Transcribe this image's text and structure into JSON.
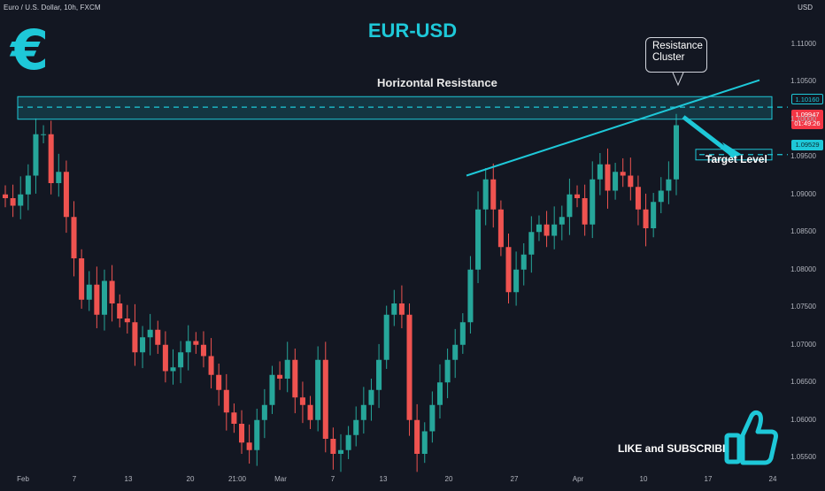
{
  "header": {
    "symbol": "Euro / U.S. Dollar, 10h, FXCM",
    "currency": "USD"
  },
  "icons": {
    "logo": "euro-sign-icon",
    "like": "thumbs-up-icon"
  },
  "colors": {
    "background": "#131722",
    "accent": "#1ec8d8",
    "up_candle": "#26a69a",
    "down_candle": "#ef5350",
    "last_price_tag": "#f23645"
  },
  "chart_data": {
    "type": "candlestick",
    "title": "EUR-USD",
    "y_axis": {
      "position": "right",
      "unit": "USD",
      "ticks": [
        "1.11000",
        "1.10500",
        "1.10000",
        "1.09500",
        "1.09000",
        "1.08500",
        "1.08000",
        "1.07500",
        "1.07000",
        "1.06500",
        "1.06000",
        "1.05500"
      ],
      "range": [
        1.0535,
        1.1135
      ]
    },
    "x_axis": {
      "ticks": [
        "Feb",
        "7",
        "13",
        "20",
        "21:00",
        "Mar",
        "7",
        "13",
        "20",
        "27",
        "Apr",
        "10",
        "17",
        "24"
      ]
    },
    "series_close_approx": [
      1.0895,
      1.0885,
      1.09,
      1.0925,
      1.098,
      1.098,
      1.0915,
      1.093,
      1.087,
      1.0815,
      1.076,
      1.078,
      1.074,
      1.0785,
      1.0755,
      1.0735,
      1.073,
      1.069,
      1.071,
      1.072,
      1.07,
      1.0665,
      1.067,
      1.069,
      1.0705,
      1.07,
      1.0685,
      1.066,
      1.064,
      1.061,
      1.0595,
      1.057,
      1.056,
      1.06,
      1.062,
      1.066,
      1.0655,
      1.068,
      1.063,
      1.062,
      1.06,
      1.068,
      1.0575,
      1.0555,
      1.056,
      1.058,
      1.06,
      1.062,
      1.064,
      1.068,
      1.074,
      1.0755,
      1.074,
      1.06,
      1.0555,
      1.0585,
      1.062,
      1.065,
      1.068,
      1.07,
      1.073,
      1.08,
      1.088,
      1.092,
      1.088,
      1.083,
      1.077,
      1.08,
      1.082,
      1.085,
      1.086,
      1.0845,
      1.086,
      1.087,
      1.09,
      1.0895,
      1.086,
      1.092,
      1.094,
      1.0905,
      1.093,
      1.0925,
      1.091,
      1.088,
      1.0855,
      1.089,
      1.0905,
      1.092,
      1.0992
    ],
    "last_price": "1.09947",
    "countdown": "01:49:26",
    "annotations": {
      "resistance_zone": {
        "label": "Horizontal Resistance",
        "low": 1.1,
        "high": 1.103,
        "level": "1.10160"
      },
      "trendline": {
        "from": {
          "x": "Mar 22",
          "y": 1.0925
        },
        "to": {
          "x": "Apr 16",
          "y": 1.1052
        }
      },
      "resistance_cluster_callout": [
        "Resistance",
        "Cluster"
      ],
      "target": {
        "label": "Target Level",
        "level": "1.09529"
      }
    }
  },
  "cta": {
    "text": "LIKE and SUBSCRIBE"
  }
}
